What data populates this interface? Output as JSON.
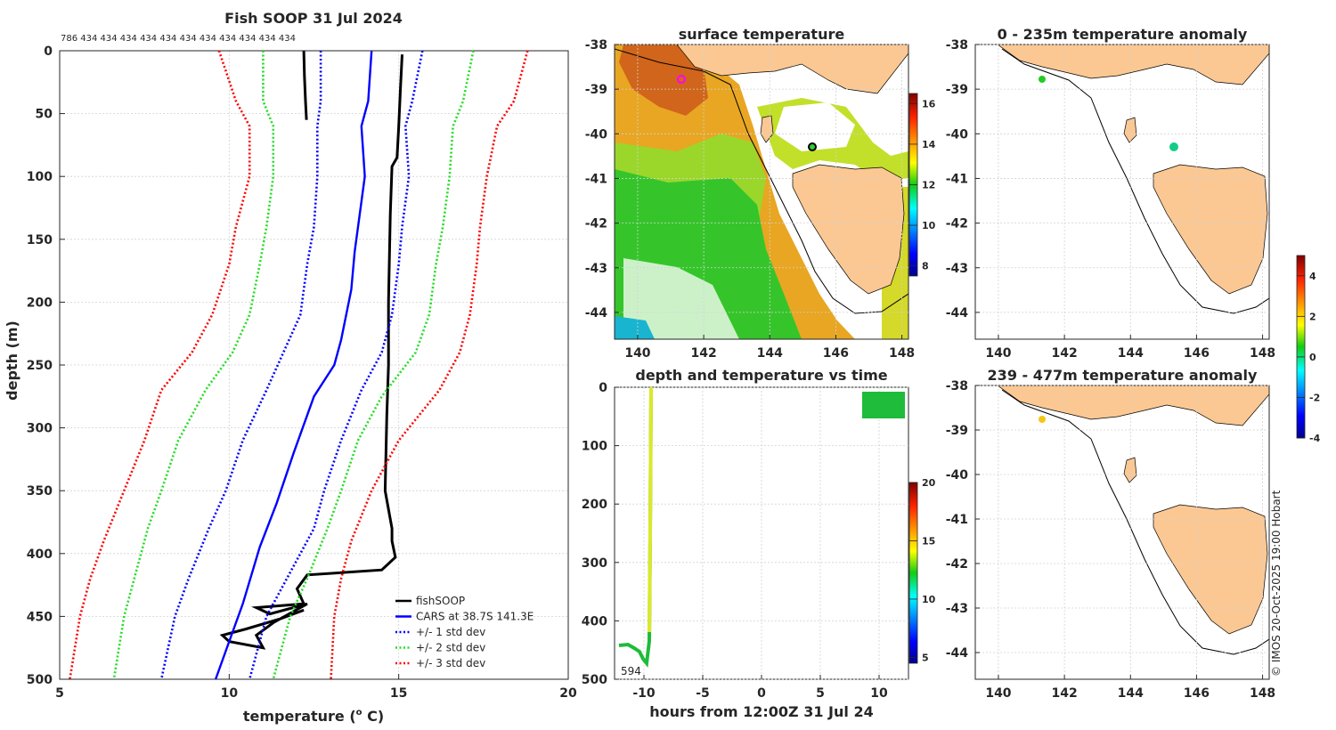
{
  "figure_title": "Fish SOOP 31 Jul 2024",
  "copyright": "© IMOS 20-Oct-2025 19:00 Hobart",
  "colors": {
    "fishsoop": "#000000",
    "cars": "#0000ff",
    "std1": "#0000ff",
    "std2": "#22dd22",
    "std3": "#ff0000",
    "land": "#fbc893"
  },
  "chart_data": [
    {
      "id": "profile",
      "type": "line",
      "title": "Fish SOOP 31 Jul 2024",
      "xlabel": "temperature (",
      "xlabel_sup": "o",
      "xlabel_tail": " C)",
      "ylabel": "depth (m)",
      "xlim": [
        5,
        20
      ],
      "ylim": [
        500,
        0
      ],
      "xticks": [
        5,
        10,
        15,
        20
      ],
      "yticks": [
        0,
        50,
        100,
        150,
        200,
        250,
        300,
        350,
        400,
        450,
        500
      ],
      "count_labels": "786 434 434 434 434 434 434 434 434 434 434 434",
      "legend_position": "bottom-right",
      "series": [
        {
          "name": "fishSOOP",
          "style": "solid",
          "color": "#000000",
          "points": [
            [
              15.1,
              3
            ],
            [
              15.05,
              30
            ],
            [
              15.0,
              60
            ],
            [
              14.95,
              85
            ],
            [
              14.8,
              92
            ],
            [
              14.75,
              130
            ],
            [
              14.7,
              200
            ],
            [
              14.7,
              250
            ],
            [
              14.65,
              290
            ],
            [
              14.6,
              350
            ],
            [
              14.8,
              380
            ],
            [
              14.8,
              390
            ],
            [
              14.9,
              403
            ],
            [
              14.5,
              413
            ],
            [
              12.3,
              417
            ],
            [
              12.0,
              428
            ],
            [
              12.2,
              440
            ],
            [
              10.8,
              443
            ],
            [
              11.2,
              448
            ],
            [
              12.3,
              440
            ],
            [
              11.3,
              455
            ],
            [
              10.8,
              465
            ],
            [
              11.0,
              475
            ],
            [
              10.0,
              470
            ],
            [
              9.8,
              465
            ],
            [
              10.5,
              460
            ],
            [
              11.5,
              452
            ],
            [
              12.2,
              445
            ]
          ]
        },
        {
          "name": "fishSOOP-surface",
          "style": "solid",
          "color": "#000000",
          "legend": false,
          "points": [
            [
              12.2,
              0
            ],
            [
              12.22,
              20
            ],
            [
              12.25,
              40
            ],
            [
              12.28,
              55
            ]
          ]
        },
        {
          "name": "CARS at 38.7S 141.3E",
          "style": "solid",
          "color": "#0000ff",
          "points": [
            [
              14.2,
              0
            ],
            [
              14.1,
              40
            ],
            [
              13.9,
              60
            ],
            [
              14.0,
              100
            ],
            [
              13.8,
              140
            ],
            [
              13.7,
              160
            ],
            [
              13.6,
              190
            ],
            [
              13.3,
              230
            ],
            [
              13.1,
              250
            ],
            [
              12.5,
              275
            ],
            [
              11.9,
              320
            ],
            [
              11.4,
              360
            ],
            [
              10.9,
              395
            ],
            [
              10.4,
              440
            ],
            [
              10.0,
              470
            ],
            [
              9.6,
              500
            ]
          ]
        },
        {
          "name": "+/- 1 std dev",
          "style": "dotted",
          "color": "#0000ff",
          "points": [
            [
              15.7,
              0
            ],
            [
              15.4,
              40
            ],
            [
              15.2,
              60
            ],
            [
              15.3,
              100
            ],
            [
              15.1,
              140
            ],
            [
              15.0,
              170
            ],
            [
              14.8,
              210
            ],
            [
              14.5,
              240
            ],
            [
              13.9,
              270
            ],
            [
              13.3,
              310
            ],
            [
              12.8,
              350
            ],
            [
              12.5,
              380
            ],
            [
              11.7,
              420
            ],
            [
              11.1,
              450
            ],
            [
              10.6,
              500
            ]
          ]
        },
        {
          "name": "+/- 1 std dev-low",
          "style": "dotted",
          "color": "#0000ff",
          "legend": false,
          "points": [
            [
              12.7,
              0
            ],
            [
              12.7,
              40
            ],
            [
              12.6,
              60
            ],
            [
              12.6,
              100
            ],
            [
              12.5,
              140
            ],
            [
              12.3,
              170
            ],
            [
              12.1,
              210
            ],
            [
              11.6,
              240
            ],
            [
              11.1,
              270
            ],
            [
              10.4,
              310
            ],
            [
              9.9,
              350
            ],
            [
              9.4,
              380
            ],
            [
              8.8,
              420
            ],
            [
              8.4,
              450
            ],
            [
              8.0,
              500
            ]
          ]
        },
        {
          "name": "+/- 2 std dev",
          "style": "dotted",
          "color": "#22dd22",
          "points": [
            [
              17.2,
              0
            ],
            [
              16.9,
              40
            ],
            [
              16.6,
              60
            ],
            [
              16.5,
              100
            ],
            [
              16.3,
              140
            ],
            [
              16.1,
              170
            ],
            [
              15.9,
              210
            ],
            [
              15.5,
              240
            ],
            [
              14.5,
              275
            ],
            [
              13.8,
              310
            ],
            [
              13.3,
              350
            ],
            [
              12.9,
              380
            ],
            [
              12.3,
              420
            ],
            [
              11.8,
              450
            ],
            [
              11.3,
              500
            ]
          ]
        },
        {
          "name": "+/- 2 std dev-low",
          "style": "dotted",
          "color": "#22dd22",
          "legend": false,
          "points": [
            [
              11.0,
              0
            ],
            [
              11.0,
              40
            ],
            [
              11.3,
              60
            ],
            [
              11.3,
              100
            ],
            [
              11.1,
              140
            ],
            [
              10.9,
              170
            ],
            [
              10.6,
              210
            ],
            [
              10.1,
              240
            ],
            [
              9.3,
              270
            ],
            [
              8.5,
              310
            ],
            [
              8.0,
              350
            ],
            [
              7.6,
              380
            ],
            [
              7.2,
              420
            ],
            [
              6.9,
              450
            ],
            [
              6.6,
              500
            ]
          ]
        },
        {
          "name": "+/- 3 std dev",
          "style": "dotted",
          "color": "#ff0000",
          "points": [
            [
              18.8,
              0
            ],
            [
              18.4,
              40
            ],
            [
              17.9,
              60
            ],
            [
              17.6,
              100
            ],
            [
              17.4,
              140
            ],
            [
              17.3,
              170
            ],
            [
              17.1,
              210
            ],
            [
              16.8,
              240
            ],
            [
              16.2,
              270
            ],
            [
              15.0,
              310
            ],
            [
              14.2,
              350
            ],
            [
              13.6,
              390
            ],
            [
              13.3,
              420
            ],
            [
              13.1,
              450
            ],
            [
              13.0,
              500
            ]
          ]
        },
        {
          "name": "+/- 3 std dev-low",
          "style": "dotted",
          "color": "#ff0000",
          "legend": false,
          "points": [
            [
              9.7,
              0
            ],
            [
              10.2,
              40
            ],
            [
              10.6,
              60
            ],
            [
              10.6,
              100
            ],
            [
              10.2,
              140
            ],
            [
              10.0,
              170
            ],
            [
              9.5,
              210
            ],
            [
              8.9,
              240
            ],
            [
              8.0,
              270
            ],
            [
              7.5,
              310
            ],
            [
              6.9,
              350
            ],
            [
              6.3,
              390
            ],
            [
              5.9,
              420
            ],
            [
              5.6,
              450
            ],
            [
              5.3,
              500
            ]
          ]
        }
      ]
    },
    {
      "id": "sst",
      "type": "heatmap",
      "title": "surface temperature",
      "xlim": [
        139.3,
        148.2
      ],
      "ylim": [
        -44.6,
        -38
      ],
      "xticks": [
        140,
        142,
        144,
        146,
        148
      ],
      "yticks": [
        -38,
        -39,
        -40,
        -41,
        -42,
        -43,
        -44
      ],
      "colorbar_range": [
        7.5,
        16.5
      ],
      "colorbar_ticks": [
        8,
        10,
        12,
        14,
        16
      ],
      "markers": [
        {
          "lon": 141.3,
          "lat": -38.7,
          "color": "#ff00ff"
        },
        {
          "lon": 145.3,
          "lat": -40.25,
          "color": "#000000"
        }
      ]
    },
    {
      "id": "timeseries",
      "type": "scatter",
      "title": "depth and temperature vs time",
      "xlabel": "hours from 12:00Z 31 Jul 24",
      "xlim": [
        -12.5,
        12.5
      ],
      "ylim": [
        500,
        0
      ],
      "xticks": [
        -10,
        -5,
        0,
        5,
        10
      ],
      "yticks": [
        0,
        100,
        200,
        300,
        400,
        500
      ],
      "annotation": "594",
      "colorbar_range": [
        4.5,
        20
      ],
      "colorbar_ticks": [
        5,
        10,
        15,
        20
      ]
    },
    {
      "id": "anom1",
      "type": "scatter",
      "title": "0 - 235m temperature anomaly",
      "xlim": [
        139.3,
        148.2
      ],
      "ylim": [
        -44.6,
        -38
      ],
      "xticks": [
        140,
        142,
        144,
        146,
        148
      ],
      "yticks": [
        -38,
        -39,
        -40,
        -41,
        -42,
        -43,
        -44
      ],
      "points": [
        {
          "lon": 141.3,
          "lat": -38.75,
          "anomaly": 0.2
        },
        {
          "lon": 145.3,
          "lat": -40.25,
          "anomaly": -0.7
        }
      ]
    },
    {
      "id": "anom2",
      "type": "scatter",
      "title": "239 - 477m temperature anomaly",
      "xlim": [
        139.3,
        148.2
      ],
      "ylim": [
        -44.6,
        -38
      ],
      "xticks": [
        140,
        142,
        144,
        146,
        148
      ],
      "yticks": [
        -38,
        -39,
        -40,
        -41,
        -42,
        -43,
        -44
      ],
      "points": [
        {
          "lon": 141.3,
          "lat": -38.75,
          "anomaly": 2.5
        }
      ],
      "colorbar_range": [
        -4,
        5
      ],
      "colorbar_ticks": [
        -4,
        -2,
        0,
        2,
        4
      ]
    }
  ]
}
